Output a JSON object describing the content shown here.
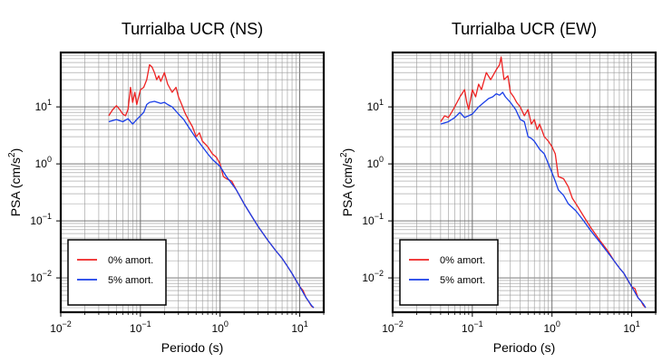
{
  "chart_data": [
    {
      "type": "line",
      "title": "Turrialba UCR (NS)",
      "xlabel": "Periodo (s)",
      "ylabel_text": "PSA (cm/s",
      "ylabel_sup": "2",
      "ylabel_close": ")",
      "x_scale": "log",
      "y_scale": "log",
      "xlim": [
        0.01,
        20
      ],
      "ylim": [
        0.0025,
        90
      ],
      "grid": true,
      "legend_position": "bottom-left",
      "x_ticks": [
        {
          "base": "10",
          "exp": "−2",
          "value": 0.01
        },
        {
          "base": "10",
          "exp": "−1",
          "value": 0.1
        },
        {
          "base": "10",
          "exp": "0",
          "value": 1
        },
        {
          "base": "10",
          "exp": "1",
          "value": 10
        }
      ],
      "y_ticks": [
        {
          "base": "10",
          "exp": "−2",
          "value": 0.01
        },
        {
          "base": "10",
          "exp": "−1",
          "value": 0.1
        },
        {
          "base": "10",
          "exp": "0",
          "value": 1
        },
        {
          "base": "10",
          "exp": "1",
          "value": 10
        }
      ],
      "series": [
        {
          "name": "0% amort.",
          "color": "#ee2222",
          "points": [
            [
              0.04,
              7.0
            ],
            [
              0.045,
              9.0
            ],
            [
              0.05,
              10.5
            ],
            [
              0.055,
              9.0
            ],
            [
              0.06,
              7.5
            ],
            [
              0.065,
              7.0
            ],
            [
              0.07,
              9.0
            ],
            [
              0.075,
              22
            ],
            [
              0.08,
              12
            ],
            [
              0.085,
              18
            ],
            [
              0.09,
              11
            ],
            [
              0.095,
              15
            ],
            [
              0.1,
              20
            ],
            [
              0.11,
              22
            ],
            [
              0.12,
              30
            ],
            [
              0.13,
              55
            ],
            [
              0.14,
              50
            ],
            [
              0.15,
              40
            ],
            [
              0.16,
              30
            ],
            [
              0.17,
              35
            ],
            [
              0.18,
              28
            ],
            [
              0.2,
              40
            ],
            [
              0.22,
              25
            ],
            [
              0.25,
              18
            ],
            [
              0.28,
              22
            ],
            [
              0.3,
              15
            ],
            [
              0.33,
              11
            ],
            [
              0.36,
              8
            ],
            [
              0.4,
              6
            ],
            [
              0.45,
              4.5
            ],
            [
              0.5,
              3.0
            ],
            [
              0.55,
              3.5
            ],
            [
              0.6,
              2.5
            ],
            [
              0.7,
              2.0
            ],
            [
              0.8,
              1.5
            ],
            [
              0.9,
              1.3
            ],
            [
              1.0,
              1.0
            ],
            [
              1.1,
              0.6
            ],
            [
              1.2,
              0.55
            ],
            [
              1.4,
              0.5
            ],
            [
              1.6,
              0.35
            ],
            [
              2.0,
              0.2
            ],
            [
              2.5,
              0.12
            ],
            [
              3.0,
              0.08
            ],
            [
              4.0,
              0.045
            ],
            [
              5.0,
              0.03
            ],
            [
              6.0,
              0.022
            ],
            [
              7.0,
              0.016
            ],
            [
              8.0,
              0.012
            ],
            [
              9.0,
              0.009
            ],
            [
              10,
              0.007
            ],
            [
              11,
              0.006
            ],
            [
              12,
              0.0045
            ],
            [
              13,
              0.0038
            ],
            [
              14,
              0.0032
            ],
            [
              15,
              0.003
            ]
          ]
        },
        {
          "name": "5% amort.",
          "color": "#1a3ee8",
          "points": [
            [
              0.04,
              5.5
            ],
            [
              0.05,
              6.0
            ],
            [
              0.06,
              5.5
            ],
            [
              0.07,
              6.2
            ],
            [
              0.08,
              5.0
            ],
            [
              0.09,
              6.0
            ],
            [
              0.1,
              7.0
            ],
            [
              0.11,
              8.0
            ],
            [
              0.12,
              11
            ],
            [
              0.13,
              12
            ],
            [
              0.15,
              12.5
            ],
            [
              0.18,
              11.5
            ],
            [
              0.2,
              12
            ],
            [
              0.22,
              11
            ],
            [
              0.25,
              10
            ],
            [
              0.3,
              7.5
            ],
            [
              0.35,
              6.0
            ],
            [
              0.4,
              4.5
            ],
            [
              0.45,
              3.5
            ],
            [
              0.5,
              2.8
            ],
            [
              0.6,
              2.0
            ],
            [
              0.7,
              1.5
            ],
            [
              0.8,
              1.2
            ],
            [
              1.0,
              0.9
            ],
            [
              1.2,
              0.6
            ],
            [
              1.4,
              0.45
            ],
            [
              1.6,
              0.35
            ],
            [
              2.0,
              0.2
            ],
            [
              2.5,
              0.12
            ],
            [
              3.0,
              0.08
            ],
            [
              4.0,
              0.045
            ],
            [
              5.0,
              0.03
            ],
            [
              6.0,
              0.022
            ],
            [
              7.0,
              0.016
            ],
            [
              8.0,
              0.012
            ],
            [
              10,
              0.007
            ],
            [
              12,
              0.0045
            ],
            [
              14,
              0.0033
            ],
            [
              15,
              0.003
            ]
          ]
        }
      ]
    },
    {
      "type": "line",
      "title": "Turrialba UCR (EW)",
      "xlabel": "Periodo (s)",
      "ylabel_text": "PSA (cm/s",
      "ylabel_sup": "2",
      "ylabel_close": ")",
      "x_scale": "log",
      "y_scale": "log",
      "xlim": [
        0.01,
        20
      ],
      "ylim": [
        0.0025,
        90
      ],
      "grid": true,
      "legend_position": "bottom-left",
      "x_ticks": [
        {
          "base": "10",
          "exp": "−2",
          "value": 0.01
        },
        {
          "base": "10",
          "exp": "−1",
          "value": 0.1
        },
        {
          "base": "10",
          "exp": "0",
          "value": 1
        },
        {
          "base": "10",
          "exp": "1",
          "value": 10
        }
      ],
      "y_ticks": [
        {
          "base": "10",
          "exp": "−2",
          "value": 0.01
        },
        {
          "base": "10",
          "exp": "−1",
          "value": 0.1
        },
        {
          "base": "10",
          "exp": "0",
          "value": 1
        },
        {
          "base": "10",
          "exp": "1",
          "value": 10
        }
      ],
      "series": [
        {
          "name": "0% amort.",
          "color": "#ee2222",
          "points": [
            [
              0.04,
              5.5
            ],
            [
              0.045,
              7.0
            ],
            [
              0.05,
              6.5
            ],
            [
              0.055,
              8.0
            ],
            [
              0.06,
              10
            ],
            [
              0.07,
              15
            ],
            [
              0.08,
              20
            ],
            [
              0.085,
              12
            ],
            [
              0.09,
              9
            ],
            [
              0.1,
              20
            ],
            [
              0.11,
              15
            ],
            [
              0.12,
              25
            ],
            [
              0.13,
              20
            ],
            [
              0.15,
              40
            ],
            [
              0.17,
              30
            ],
            [
              0.2,
              45
            ],
            [
              0.22,
              55
            ],
            [
              0.23,
              75
            ],
            [
              0.25,
              30
            ],
            [
              0.28,
              35
            ],
            [
              0.3,
              18
            ],
            [
              0.33,
              15
            ],
            [
              0.36,
              12
            ],
            [
              0.4,
              10
            ],
            [
              0.45,
              7
            ],
            [
              0.5,
              9
            ],
            [
              0.55,
              5
            ],
            [
              0.6,
              6
            ],
            [
              0.65,
              4
            ],
            [
              0.7,
              5
            ],
            [
              0.8,
              3
            ],
            [
              0.9,
              2.5
            ],
            [
              1.0,
              2.0
            ],
            [
              1.1,
              1.5
            ],
            [
              1.2,
              0.6
            ],
            [
              1.4,
              0.55
            ],
            [
              1.6,
              0.4
            ],
            [
              1.8,
              0.25
            ],
            [
              2.0,
              0.2
            ],
            [
              2.5,
              0.12
            ],
            [
              3.0,
              0.08
            ],
            [
              4.0,
              0.045
            ],
            [
              5.0,
              0.03
            ],
            [
              6.0,
              0.02
            ],
            [
              7.0,
              0.015
            ],
            [
              8.0,
              0.012
            ],
            [
              9.0,
              0.009
            ],
            [
              10,
              0.007
            ],
            [
              11,
              0.0065
            ],
            [
              12,
              0.0045
            ],
            [
              13,
              0.004
            ],
            [
              14,
              0.0033
            ],
            [
              15,
              0.003
            ]
          ]
        },
        {
          "name": "5% amort.",
          "color": "#1a3ee8",
          "points": [
            [
              0.04,
              5.0
            ],
            [
              0.05,
              5.5
            ],
            [
              0.06,
              6.5
            ],
            [
              0.07,
              8.0
            ],
            [
              0.08,
              6.5
            ],
            [
              0.09,
              7.0
            ],
            [
              0.1,
              7.5
            ],
            [
              0.12,
              10
            ],
            [
              0.14,
              12
            ],
            [
              0.16,
              14
            ],
            [
              0.18,
              15
            ],
            [
              0.2,
              17
            ],
            [
              0.22,
              16
            ],
            [
              0.24,
              18
            ],
            [
              0.26,
              15
            ],
            [
              0.3,
              12
            ],
            [
              0.35,
              9
            ],
            [
              0.4,
              6
            ],
            [
              0.45,
              5.5
            ],
            [
              0.5,
              3.0
            ],
            [
              0.55,
              2.8
            ],
            [
              0.6,
              2.5
            ],
            [
              0.7,
              1.8
            ],
            [
              0.8,
              1.5
            ],
            [
              0.9,
              1.0
            ],
            [
              1.0,
              0.7
            ],
            [
              1.1,
              0.5
            ],
            [
              1.2,
              0.35
            ],
            [
              1.4,
              0.28
            ],
            [
              1.6,
              0.2
            ],
            [
              2.0,
              0.15
            ],
            [
              2.5,
              0.1
            ],
            [
              3.0,
              0.07
            ],
            [
              4.0,
              0.042
            ],
            [
              5.0,
              0.028
            ],
            [
              6.0,
              0.02
            ],
            [
              7.0,
              0.015
            ],
            [
              8.0,
              0.012
            ],
            [
              10,
              0.007
            ],
            [
              12,
              0.0045
            ],
            [
              14,
              0.0035
            ],
            [
              15,
              0.003
            ]
          ]
        }
      ]
    }
  ]
}
